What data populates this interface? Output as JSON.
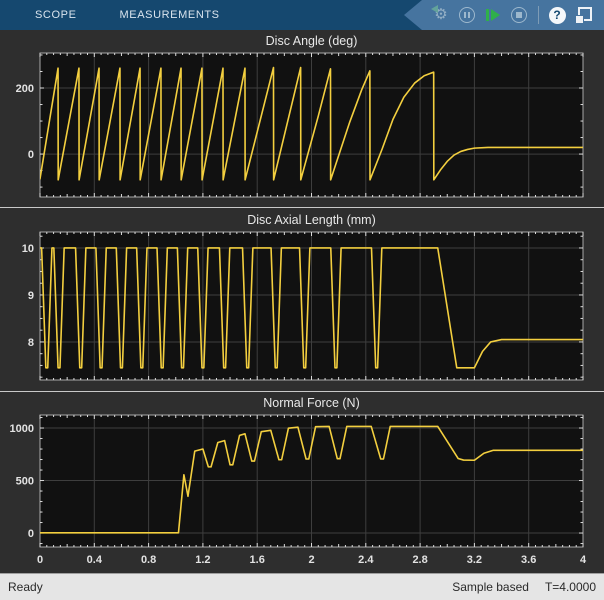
{
  "toolbar": {
    "tabs": [
      {
        "label": "SCOPE"
      },
      {
        "label": "MEASUREMENTS"
      }
    ],
    "buttons": [
      {
        "name": "step-back",
        "enabled": false
      },
      {
        "name": "pause",
        "enabled": false
      },
      {
        "name": "step-forward",
        "enabled": true
      },
      {
        "name": "stop",
        "enabled": false
      },
      {
        "name": "help",
        "enabled": true
      },
      {
        "name": "pop-out",
        "enabled": true
      }
    ],
    "help_glyph": "?",
    "gear_glyph": "⚙",
    "colors": {
      "strip_bg": "#15486f",
      "banner_bg": "#46749f",
      "run_green": "#2fb04a"
    }
  },
  "status_bar": {
    "left": "Ready",
    "sample_mode": "Sample based",
    "time": "T=4.0000"
  },
  "colors": {
    "line": "#f3cf3f",
    "plot_bg": "#111111",
    "figure_bg": "#2e2e2e",
    "grid": "#3e3e3e",
    "border": "#a8a8a8",
    "tick": "#dcdcdc",
    "label": "#e3e3e3"
  },
  "x_axis": {
    "lim": [
      0,
      4
    ],
    "major_step": 0.4,
    "mid_step": 0.2,
    "minor_step": 0.05,
    "labels": [
      "0",
      "0.4",
      "0.8",
      "1.2",
      "1.6",
      "2",
      "2.4",
      "2.8",
      "3.2",
      "3.6",
      "4"
    ]
  },
  "chart_data": [
    {
      "type": "line",
      "title": "Disc Angle (deg)",
      "xlabel": "",
      "ylabel": "",
      "xlim": [
        0,
        4
      ],
      "ylim": [
        -130,
        306
      ],
      "grid": true,
      "legend": "none",
      "y_ticks": [
        {
          "v": 200,
          "label": "200"
        },
        {
          "v": 0,
          "label": "0"
        }
      ],
      "y_minor_step": 50,
      "show_x_labels": false,
      "points": [
        [
          0,
          -75
        ],
        [
          0.133,
          260
        ],
        [
          0.134,
          -78
        ],
        [
          0.287,
          260
        ],
        [
          0.288,
          -78
        ],
        [
          0.435,
          260
        ],
        [
          0.436,
          -78
        ],
        [
          0.589,
          260
        ],
        [
          0.59,
          -78
        ],
        [
          0.737,
          260
        ],
        [
          0.738,
          -78
        ],
        [
          0.891,
          260
        ],
        [
          0.892,
          -78
        ],
        [
          1.039,
          260
        ],
        [
          1.04,
          -78
        ],
        [
          1.193,
          260
        ],
        [
          1.194,
          -78
        ],
        [
          1.348,
          260
        ],
        [
          1.349,
          -78
        ],
        [
          1.51,
          260
        ],
        [
          1.511,
          -78
        ],
        [
          1.72,
          262
        ],
        [
          1.721,
          -78
        ],
        [
          1.92,
          262
        ],
        [
          1.921,
          -78
        ],
        [
          2.05,
          115
        ],
        [
          2.14,
          258
        ],
        [
          2.141,
          -78
        ],
        [
          2.28,
          95
        ],
        [
          2.37,
          195
        ],
        [
          2.43,
          252
        ],
        [
          2.431,
          -78
        ],
        [
          2.52,
          15
        ],
        [
          2.6,
          105
        ],
        [
          2.68,
          172
        ],
        [
          2.76,
          215
        ],
        [
          2.83,
          237
        ],
        [
          2.9,
          248
        ],
        [
          2.901,
          -78
        ],
        [
          2.95,
          -48
        ],
        [
          3,
          -22
        ],
        [
          3.05,
          -3
        ],
        [
          3.1,
          8
        ],
        [
          3.15,
          14
        ],
        [
          3.2,
          18
        ],
        [
          3.3,
          20
        ],
        [
          4,
          20
        ]
      ]
    },
    {
      "type": "line",
      "title": "Disc Axial Length (mm)",
      "xlabel": "",
      "ylabel": "",
      "xlim": [
        0,
        4
      ],
      "ylim": [
        7.19,
        10.34
      ],
      "grid": true,
      "legend": "none",
      "y_ticks": [
        {
          "v": 10,
          "label": "10"
        },
        {
          "v": 9,
          "label": "9"
        },
        {
          "v": 8,
          "label": "8"
        }
      ],
      "y_minor_step": 0.25,
      "show_x_labels": false,
      "points": [
        [
          0,
          10
        ],
        [
          0.012,
          10
        ],
        [
          0.043,
          7.45
        ],
        [
          0.057,
          7.45
        ],
        [
          0.088,
          10
        ],
        [
          0.102,
          10
        ],
        [
          0.133,
          7.45
        ],
        [
          0.147,
          7.45
        ],
        [
          0.178,
          10
        ],
        [
          0.262,
          10
        ],
        [
          0.293,
          7.45
        ],
        [
          0.307,
          7.45
        ],
        [
          0.338,
          10
        ],
        [
          0.412,
          10
        ],
        [
          0.443,
          7.45
        ],
        [
          0.457,
          7.45
        ],
        [
          0.488,
          10
        ],
        [
          0.562,
          10
        ],
        [
          0.593,
          7.45
        ],
        [
          0.607,
          7.45
        ],
        [
          0.638,
          10
        ],
        [
          0.712,
          10
        ],
        [
          0.743,
          7.45
        ],
        [
          0.757,
          7.45
        ],
        [
          0.788,
          10
        ],
        [
          0.862,
          10
        ],
        [
          0.893,
          7.45
        ],
        [
          0.907,
          7.45
        ],
        [
          0.938,
          10
        ],
        [
          1.012,
          10
        ],
        [
          1.043,
          7.45
        ],
        [
          1.057,
          7.45
        ],
        [
          1.088,
          10
        ],
        [
          1.162,
          10
        ],
        [
          1.193,
          7.45
        ],
        [
          1.207,
          7.45
        ],
        [
          1.238,
          10
        ],
        [
          1.322,
          10
        ],
        [
          1.353,
          7.45
        ],
        [
          1.367,
          7.45
        ],
        [
          1.398,
          10
        ],
        [
          1.492,
          10
        ],
        [
          1.523,
          7.45
        ],
        [
          1.537,
          7.45
        ],
        [
          1.568,
          10
        ],
        [
          1.702,
          10
        ],
        [
          1.733,
          7.45
        ],
        [
          1.747,
          7.45
        ],
        [
          1.778,
          10
        ],
        [
          1.912,
          10
        ],
        [
          1.943,
          7.45
        ],
        [
          1.957,
          7.45
        ],
        [
          1.988,
          10
        ],
        [
          2.142,
          10
        ],
        [
          2.173,
          7.45
        ],
        [
          2.187,
          7.45
        ],
        [
          2.218,
          10
        ],
        [
          2.442,
          10
        ],
        [
          2.473,
          7.45
        ],
        [
          2.487,
          7.45
        ],
        [
          2.518,
          10
        ],
        [
          2.93,
          10
        ],
        [
          3.07,
          7.45
        ],
        [
          3.2,
          7.45
        ],
        [
          3.26,
          7.8
        ],
        [
          3.32,
          8
        ],
        [
          3.4,
          8.05
        ],
        [
          4,
          8.05
        ]
      ]
    },
    {
      "type": "line",
      "title": "Normal Force (N)",
      "xlabel": "",
      "ylabel": "",
      "xlim": [
        0,
        4
      ],
      "ylim": [
        -133,
        1124
      ],
      "grid": true,
      "legend": "none",
      "y_ticks": [
        {
          "v": 1000,
          "label": "1000"
        },
        {
          "v": 500,
          "label": "500"
        },
        {
          "v": 0,
          "label": "0"
        }
      ],
      "y_minor_step": 100,
      "show_x_labels": true,
      "points": [
        [
          0,
          2
        ],
        [
          1.02,
          2
        ],
        [
          1.06,
          555
        ],
        [
          1.09,
          350
        ],
        [
          1.14,
          780
        ],
        [
          1.2,
          800
        ],
        [
          1.24,
          630
        ],
        [
          1.26,
          630
        ],
        [
          1.31,
          862
        ],
        [
          1.36,
          880
        ],
        [
          1.4,
          650
        ],
        [
          1.42,
          650
        ],
        [
          1.47,
          930
        ],
        [
          1.51,
          945
        ],
        [
          1.56,
          685
        ],
        [
          1.58,
          685
        ],
        [
          1.63,
          965
        ],
        [
          1.7,
          978
        ],
        [
          1.76,
          698
        ],
        [
          1.78,
          698
        ],
        [
          1.83,
          998
        ],
        [
          1.9,
          1008
        ],
        [
          1.96,
          705
        ],
        [
          1.98,
          705
        ],
        [
          2.03,
          1013
        ],
        [
          2.13,
          1015
        ],
        [
          2.19,
          708
        ],
        [
          2.21,
          708
        ],
        [
          2.26,
          1015
        ],
        [
          2.44,
          1015
        ],
        [
          2.51,
          705
        ],
        [
          2.53,
          705
        ],
        [
          2.58,
          1015
        ],
        [
          2.93,
          1015
        ],
        [
          3.08,
          710
        ],
        [
          3.12,
          695
        ],
        [
          3.2,
          693
        ],
        [
          3.27,
          760
        ],
        [
          3.34,
          788
        ],
        [
          4,
          788
        ]
      ]
    }
  ]
}
